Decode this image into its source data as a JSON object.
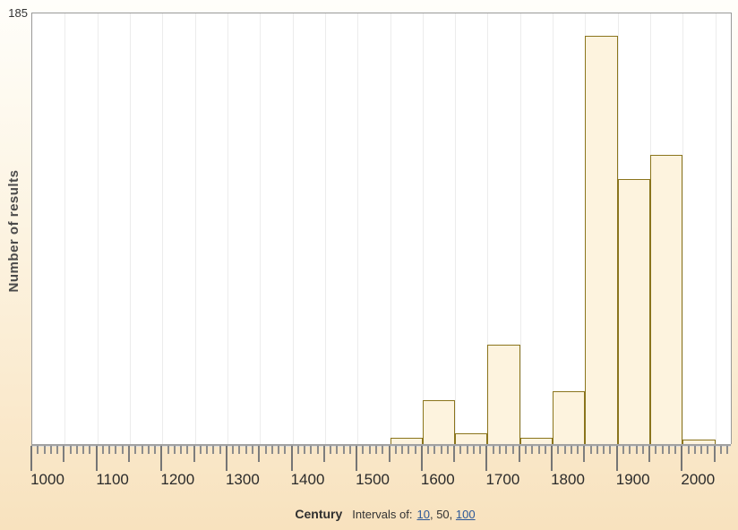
{
  "chart_data": {
    "type": "bar",
    "title": "",
    "ylabel": "Number of results",
    "xlabel": "Century",
    "y_max_label": "185",
    "ylim": [
      0,
      195
    ],
    "x_range": [
      1000,
      2070
    ],
    "x_tick_minor_step": 10,
    "x_tick_mid_step": 50,
    "x_tick_major_step": 100,
    "x_tick_labels": [
      "1000",
      "1100",
      "1200",
      "1300",
      "1400",
      "1500",
      "1600",
      "1700",
      "1800",
      "1900",
      "2000"
    ],
    "grid": "vertical gridlines every 50 years",
    "legend_position": "none",
    "bin_width_years": 50,
    "bins": [
      {
        "start": 1550,
        "end": 1600,
        "count": 3
      },
      {
        "start": 1600,
        "end": 1650,
        "count": 20
      },
      {
        "start": 1650,
        "end": 1700,
        "count": 5
      },
      {
        "start": 1700,
        "end": 1750,
        "count": 45
      },
      {
        "start": 1750,
        "end": 1800,
        "count": 3
      },
      {
        "start": 1800,
        "end": 1850,
        "count": 24
      },
      {
        "start": 1850,
        "end": 1900,
        "count": 185
      },
      {
        "start": 1900,
        "end": 1950,
        "count": 120
      },
      {
        "start": 1950,
        "end": 2000,
        "count": 131
      },
      {
        "start": 2000,
        "end": 2050,
        "count": 2
      }
    ]
  },
  "intervals": {
    "label": "Intervals of:",
    "separator": ", ",
    "options": [
      {
        "value": "10",
        "link": true
      },
      {
        "value": "50",
        "link": false
      },
      {
        "value": "100",
        "link": true
      }
    ]
  },
  "colors": {
    "bar_fill": "#fdf3de",
    "bar_border": "#8a741c",
    "link_blue": "#2b5797",
    "plot_border": "#999999",
    "gridline": "#ececec",
    "bg_top": "#fffefa",
    "bg_bottom": "#f8e2be"
  }
}
